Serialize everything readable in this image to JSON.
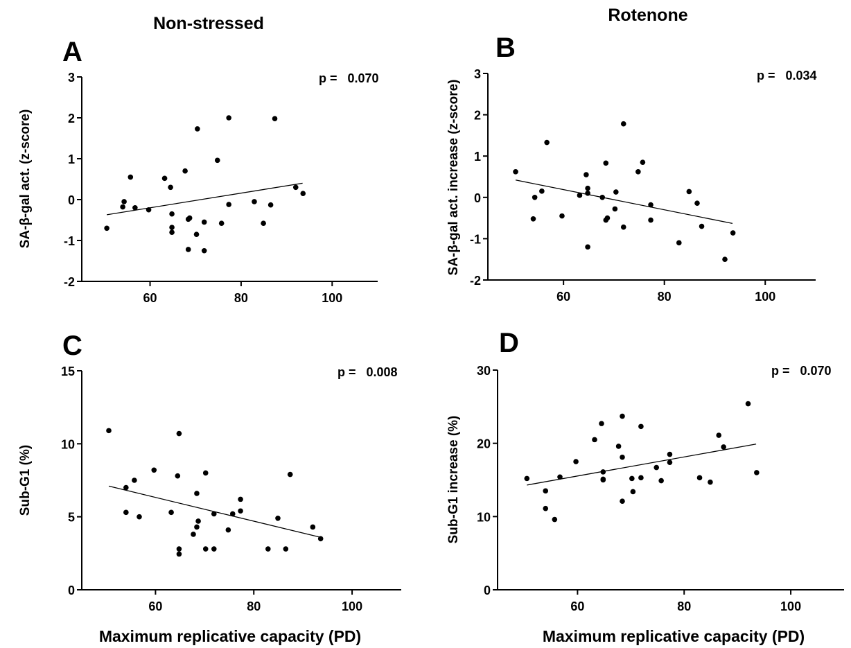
{
  "figure": {
    "col_titles": [
      "Non-stressed",
      "Rotenone"
    ],
    "x_axis_label": "Maximum replicative capacity (PD)"
  },
  "chart_data": [
    {
      "type": "scatter",
      "panel": "A",
      "ylabel": "SA-β-gal act. (z-score)",
      "annotation": "p =   0.070",
      "xlim": [
        45,
        110
      ],
      "ylim": [
        -2,
        3
      ],
      "xticks": [
        60,
        80,
        100
      ],
      "yticks": [
        -2,
        -1,
        0,
        1,
        2,
        3
      ],
      "regression": {
        "x": [
          50.5,
          93.5
        ],
        "y": [
          -0.37,
          0.4
        ]
      },
      "points": [
        {
          "x": 50.5,
          "y": -0.7
        },
        {
          "x": 54.0,
          "y": -0.18
        },
        {
          "x": 54.3,
          "y": -0.05
        },
        {
          "x": 55.7,
          "y": 0.55
        },
        {
          "x": 56.7,
          "y": -0.2
        },
        {
          "x": 59.7,
          "y": -0.25
        },
        {
          "x": 63.2,
          "y": 0.52
        },
        {
          "x": 64.5,
          "y": 0.3
        },
        {
          "x": 64.8,
          "y": -0.35
        },
        {
          "x": 64.8,
          "y": -0.68
        },
        {
          "x": 64.8,
          "y": -0.8
        },
        {
          "x": 67.7,
          "y": 0.7
        },
        {
          "x": 68.4,
          "y": -0.48
        },
        {
          "x": 68.7,
          "y": -0.45
        },
        {
          "x": 68.4,
          "y": -1.22
        },
        {
          "x": 70.2,
          "y": -0.85
        },
        {
          "x": 70.4,
          "y": 1.73
        },
        {
          "x": 71.9,
          "y": -0.55
        },
        {
          "x": 71.9,
          "y": -1.25
        },
        {
          "x": 74.8,
          "y": 0.96
        },
        {
          "x": 75.7,
          "y": -0.58
        },
        {
          "x": 77.3,
          "y": 2.0
        },
        {
          "x": 77.3,
          "y": -0.12
        },
        {
          "x": 82.9,
          "y": -0.05
        },
        {
          "x": 84.9,
          "y": -0.58
        },
        {
          "x": 86.5,
          "y": -0.13
        },
        {
          "x": 87.4,
          "y": 1.98
        },
        {
          "x": 92.0,
          "y": 0.3
        },
        {
          "x": 93.6,
          "y": 0.15
        }
      ]
    },
    {
      "type": "scatter",
      "panel": "B",
      "ylabel": "SA-β-gal act. increase (z-score)",
      "annotation": "p =   0.034",
      "xlim": [
        45,
        110
      ],
      "ylim": [
        -2,
        3
      ],
      "xticks": [
        60,
        80,
        100
      ],
      "yticks": [
        -2,
        -1,
        0,
        1,
        2,
        3
      ],
      "regression": {
        "x": [
          50.5,
          93.5
        ],
        "y": [
          0.42,
          -0.63
        ]
      },
      "points": [
        {
          "x": 50.5,
          "y": 0.62
        },
        {
          "x": 54.0,
          "y": -0.52
        },
        {
          "x": 54.3,
          "y": 0.0
        },
        {
          "x": 55.7,
          "y": 0.15
        },
        {
          "x": 56.7,
          "y": 1.33
        },
        {
          "x": 59.7,
          "y": -0.45
        },
        {
          "x": 63.2,
          "y": 0.05
        },
        {
          "x": 64.5,
          "y": 0.55
        },
        {
          "x": 64.8,
          "y": 0.22
        },
        {
          "x": 64.8,
          "y": 0.1
        },
        {
          "x": 64.8,
          "y": -1.2
        },
        {
          "x": 67.7,
          "y": 0.0
        },
        {
          "x": 68.4,
          "y": 0.83
        },
        {
          "x": 68.4,
          "y": -0.55
        },
        {
          "x": 68.7,
          "y": -0.5
        },
        {
          "x": 70.2,
          "y": -0.28
        },
        {
          "x": 70.4,
          "y": 0.13
        },
        {
          "x": 71.9,
          "y": 1.78
        },
        {
          "x": 71.9,
          "y": -0.72
        },
        {
          "x": 74.8,
          "y": 0.62
        },
        {
          "x": 75.7,
          "y": 0.85
        },
        {
          "x": 77.3,
          "y": -0.18
        },
        {
          "x": 77.3,
          "y": -0.55
        },
        {
          "x": 82.9,
          "y": -1.1
        },
        {
          "x": 84.9,
          "y": 0.14
        },
        {
          "x": 86.5,
          "y": -0.14
        },
        {
          "x": 87.4,
          "y": -0.7
        },
        {
          "x": 92.0,
          "y": -1.5
        },
        {
          "x": 93.6,
          "y": -0.86
        }
      ]
    },
    {
      "type": "scatter",
      "panel": "C",
      "ylabel": "Sub-G1 (%)",
      "annotation": "p =   0.008",
      "xlim": [
        45,
        110
      ],
      "ylim": [
        0,
        15
      ],
      "xticks": [
        60,
        80,
        100
      ],
      "yticks": [
        0,
        5,
        10,
        15
      ],
      "regression": {
        "x": [
          50.5,
          93.5
        ],
        "y": [
          7.1,
          3.6
        ]
      },
      "points": [
        {
          "x": 50.5,
          "y": 10.9
        },
        {
          "x": 54.0,
          "y": 7.0
        },
        {
          "x": 54.0,
          "y": 5.3
        },
        {
          "x": 55.7,
          "y": 7.5
        },
        {
          "x": 56.7,
          "y": 5.0
        },
        {
          "x": 59.7,
          "y": 8.2
        },
        {
          "x": 63.2,
          "y": 5.3
        },
        {
          "x": 64.5,
          "y": 7.8
        },
        {
          "x": 64.8,
          "y": 10.7
        },
        {
          "x": 64.8,
          "y": 2.8
        },
        {
          "x": 64.8,
          "y": 2.45
        },
        {
          "x": 67.7,
          "y": 3.8
        },
        {
          "x": 68.4,
          "y": 6.6
        },
        {
          "x": 68.4,
          "y": 4.3
        },
        {
          "x": 68.7,
          "y": 4.7
        },
        {
          "x": 70.2,
          "y": 8.0
        },
        {
          "x": 70.2,
          "y": 2.8
        },
        {
          "x": 71.9,
          "y": 5.2
        },
        {
          "x": 71.9,
          "y": 2.8
        },
        {
          "x": 74.8,
          "y": 4.1
        },
        {
          "x": 75.7,
          "y": 5.2
        },
        {
          "x": 77.3,
          "y": 6.2
        },
        {
          "x": 77.3,
          "y": 5.4
        },
        {
          "x": 82.9,
          "y": 2.8
        },
        {
          "x": 84.9,
          "y": 4.9
        },
        {
          "x": 86.5,
          "y": 2.8
        },
        {
          "x": 87.4,
          "y": 7.9
        },
        {
          "x": 92.0,
          "y": 4.3
        },
        {
          "x": 93.6,
          "y": 3.5
        }
      ]
    },
    {
      "type": "scatter",
      "panel": "D",
      "ylabel": "Sub-G1 increase (%)",
      "annotation": "p =   0.070",
      "xlim": [
        45,
        110
      ],
      "ylim": [
        0,
        30
      ],
      "xticks": [
        60,
        80,
        100
      ],
      "yticks": [
        0,
        10,
        20,
        30
      ],
      "regression": {
        "x": [
          50.5,
          93.5
        ],
        "y": [
          14.3,
          19.9
        ]
      },
      "points": [
        {
          "x": 50.5,
          "y": 15.2
        },
        {
          "x": 54.0,
          "y": 13.5
        },
        {
          "x": 54.0,
          "y": 11.1
        },
        {
          "x": 55.7,
          "y": 9.6
        },
        {
          "x": 56.7,
          "y": 15.4
        },
        {
          "x": 59.7,
          "y": 17.5
        },
        {
          "x": 63.2,
          "y": 20.5
        },
        {
          "x": 64.5,
          "y": 22.7
        },
        {
          "x": 64.8,
          "y": 16.1
        },
        {
          "x": 64.8,
          "y": 15.1
        },
        {
          "x": 64.8,
          "y": 15.0
        },
        {
          "x": 67.7,
          "y": 19.6
        },
        {
          "x": 68.4,
          "y": 23.7
        },
        {
          "x": 68.4,
          "y": 18.1
        },
        {
          "x": 68.4,
          "y": 12.1
        },
        {
          "x": 70.2,
          "y": 15.2
        },
        {
          "x": 70.4,
          "y": 13.4
        },
        {
          "x": 71.9,
          "y": 22.3
        },
        {
          "x": 71.9,
          "y": 15.3
        },
        {
          "x": 74.8,
          "y": 16.7
        },
        {
          "x": 75.7,
          "y": 14.9
        },
        {
          "x": 77.3,
          "y": 18.5
        },
        {
          "x": 77.3,
          "y": 17.4
        },
        {
          "x": 82.9,
          "y": 15.3
        },
        {
          "x": 84.9,
          "y": 14.7
        },
        {
          "x": 86.5,
          "y": 21.1
        },
        {
          "x": 87.4,
          "y": 19.5
        },
        {
          "x": 92.0,
          "y": 25.4
        },
        {
          "x": 93.6,
          "y": 16.0
        }
      ]
    }
  ]
}
